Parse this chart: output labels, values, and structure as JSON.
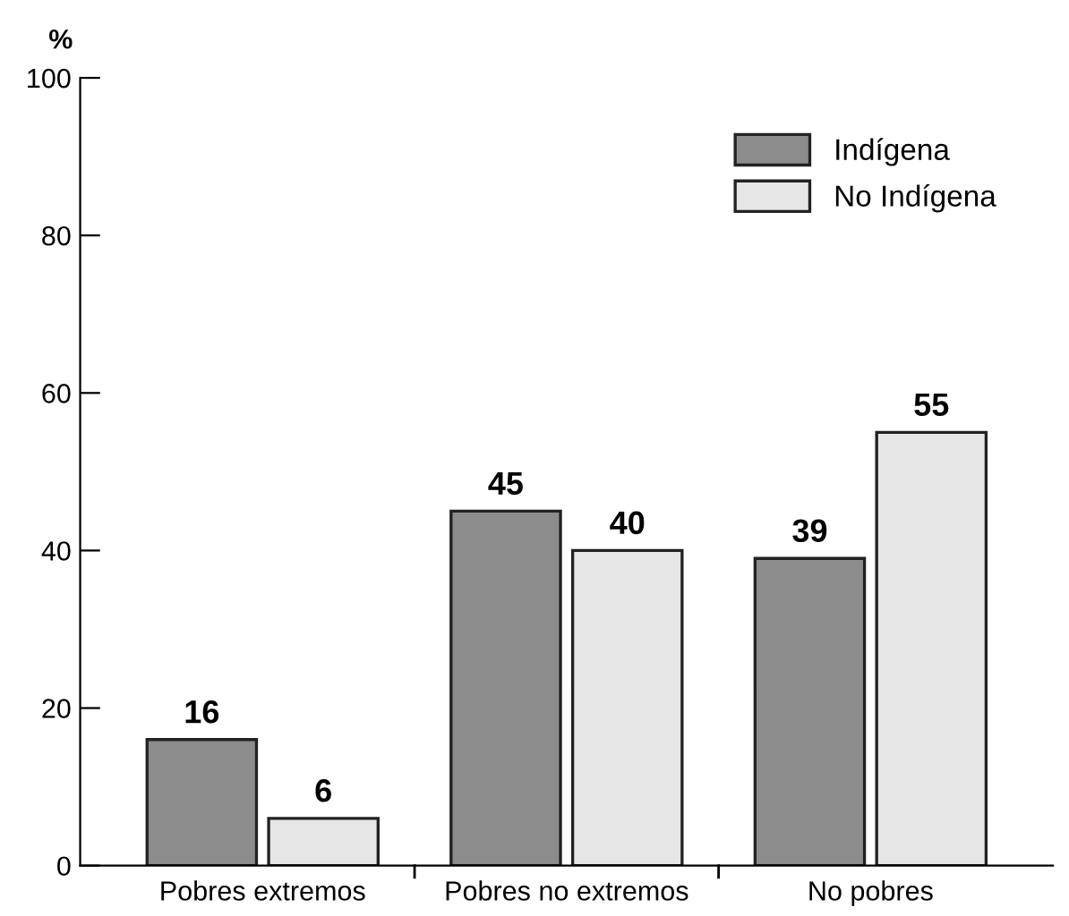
{
  "chart_data": {
    "type": "bar",
    "ylabel": "%",
    "categories": [
      "Pobres extremos",
      "Pobres no extremos",
      "No pobres"
    ],
    "series": [
      {
        "name": "Indígena",
        "color": "#8c8c8c",
        "values": [
          16,
          45,
          39
        ]
      },
      {
        "name": "No Indígena",
        "color": "#e6e6e6",
        "values": [
          6,
          40,
          55
        ]
      }
    ],
    "ylim": [
      0,
      100
    ],
    "yticks": [
      0,
      20,
      40,
      60,
      80,
      100
    ],
    "data_labels": true,
    "legend": "top right",
    "grid": false
  }
}
